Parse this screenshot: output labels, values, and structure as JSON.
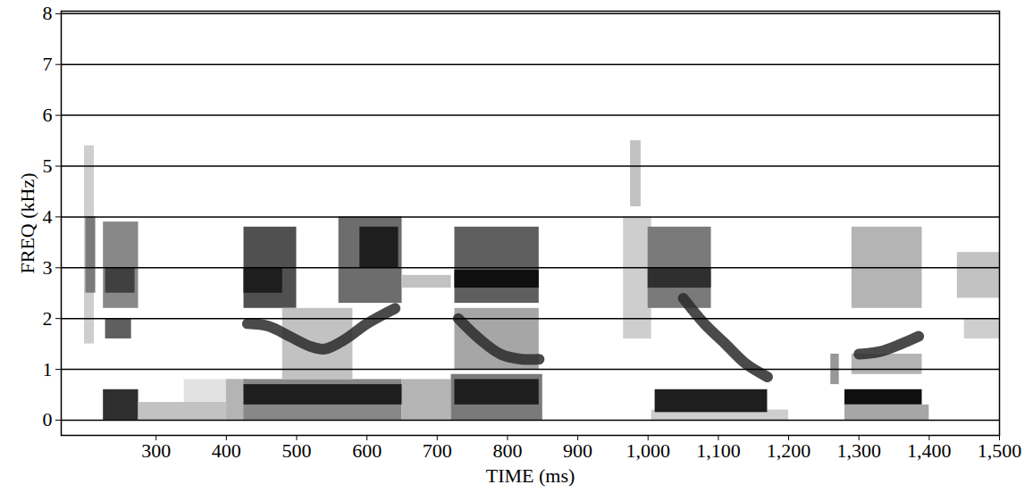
{
  "chart_data": {
    "type": "spectrogram",
    "x_label": "TIME (ms)",
    "y_label": "FREQ (kHz)",
    "xlim": [
      165,
      1500
    ],
    "ylim": [
      -0.3,
      8.05
    ],
    "xticks": [
      300,
      400,
      500,
      600,
      700,
      800,
      900,
      1000,
      1100,
      1200,
      1300,
      1400,
      1500
    ],
    "yticks": [
      0,
      1,
      2,
      3,
      4,
      5,
      6,
      7,
      8
    ],
    "grid": true,
    "cells": [
      {
        "time": [
          198,
          212
        ],
        "freq": [
          1.5,
          5.4
        ],
        "level": 0.3
      },
      {
        "time": [
          200,
          214
        ],
        "freq": [
          2.5,
          4.0
        ],
        "level": 0.6
      },
      {
        "time": [
          225,
          275
        ],
        "freq": [
          2.2,
          3.9
        ],
        "level": 0.55
      },
      {
        "time": [
          228,
          270
        ],
        "freq": [
          2.5,
          3.0
        ],
        "level": 0.8
      },
      {
        "time": [
          228,
          265
        ],
        "freq": [
          1.6,
          2.0
        ],
        "level": 0.7
      },
      {
        "time": [
          225,
          275
        ],
        "freq": [
          0.0,
          0.6
        ],
        "level": 0.85
      },
      {
        "time": [
          275,
          400
        ],
        "freq": [
          0.0,
          0.35
        ],
        "level": 0.35
      },
      {
        "time": [
          340,
          420
        ],
        "freq": [
          0.35,
          0.8
        ],
        "level": 0.2
      },
      {
        "time": [
          400,
          430
        ],
        "freq": [
          0.0,
          0.8
        ],
        "level": 0.4
      },
      {
        "time": [
          425,
          650
        ],
        "freq": [
          0.0,
          0.8
        ],
        "level": 0.55
      },
      {
        "time": [
          425,
          680
        ],
        "freq": [
          0.3,
          0.7
        ],
        "level": 0.9
      },
      {
        "time": [
          425,
          500
        ],
        "freq": [
          2.2,
          3.8
        ],
        "level": 0.75
      },
      {
        "time": [
          425,
          480
        ],
        "freq": [
          2.5,
          3.0
        ],
        "level": 0.9
      },
      {
        "time": [
          560,
          650
        ],
        "freq": [
          2.3,
          4.0
        ],
        "level": 0.65
      },
      {
        "time": [
          590,
          645
        ],
        "freq": [
          3.0,
          3.8
        ],
        "level": 0.9
      },
      {
        "time": [
          480,
          580
        ],
        "freq": [
          0.8,
          2.2
        ],
        "level": 0.35
      },
      {
        "time": [
          650,
          720
        ],
        "freq": [
          0.0,
          0.8
        ],
        "level": 0.4
      },
      {
        "time": [
          650,
          720
        ],
        "freq": [
          2.6,
          2.85
        ],
        "level": 0.35
      },
      {
        "time": [
          720,
          850
        ],
        "freq": [
          0.0,
          0.9
        ],
        "level": 0.6
      },
      {
        "time": [
          725,
          845
        ],
        "freq": [
          0.3,
          0.8
        ],
        "level": 0.9
      },
      {
        "time": [
          725,
          845
        ],
        "freq": [
          2.3,
          3.8
        ],
        "level": 0.7
      },
      {
        "time": [
          725,
          845
        ],
        "freq": [
          2.6,
          2.95
        ],
        "level": 0.95
      },
      {
        "time": [
          725,
          845
        ],
        "freq": [
          1.0,
          2.2
        ],
        "level": 0.45
      },
      {
        "time": [
          965,
          1005
        ],
        "freq": [
          1.6,
          4.0
        ],
        "level": 0.3
      },
      {
        "time": [
          975,
          990
        ],
        "freq": [
          4.2,
          5.5
        ],
        "level": 0.35
      },
      {
        "time": [
          1005,
          1200
        ],
        "freq": [
          0.0,
          0.2
        ],
        "level": 0.3
      },
      {
        "time": [
          1010,
          1170
        ],
        "freq": [
          0.15,
          0.6
        ],
        "level": 0.9
      },
      {
        "time": [
          1000,
          1090
        ],
        "freq": [
          2.2,
          3.8
        ],
        "level": 0.6
      },
      {
        "time": [
          1000,
          1090
        ],
        "freq": [
          2.6,
          3.0
        ],
        "level": 0.85
      },
      {
        "time": [
          1260,
          1272
        ],
        "freq": [
          0.7,
          1.3
        ],
        "level": 0.5
      },
      {
        "time": [
          1280,
          1390
        ],
        "freq": [
          0.3,
          0.6
        ],
        "level": 0.95
      },
      {
        "time": [
          1280,
          1400
        ],
        "freq": [
          0.0,
          0.3
        ],
        "level": 0.45
      },
      {
        "time": [
          1290,
          1390
        ],
        "freq": [
          2.2,
          3.8
        ],
        "level": 0.4
      },
      {
        "time": [
          1290,
          1390
        ],
        "freq": [
          0.9,
          1.3
        ],
        "level": 0.4
      },
      {
        "time": [
          1440,
          1500
        ],
        "freq": [
          2.4,
          3.3
        ],
        "level": 0.35
      },
      {
        "time": [
          1450,
          1500
        ],
        "freq": [
          1.6,
          2.0
        ],
        "level": 0.3
      }
    ],
    "formant_tracks": [
      {
        "color": "#2a2a2a",
        "x": [
          430,
          460,
          490,
          520,
          540,
          570,
          600,
          640
        ],
        "y": [
          1.9,
          1.85,
          1.65,
          1.45,
          1.4,
          1.6,
          1.9,
          2.2
        ]
      },
      {
        "color": "#2a2a2a",
        "x": [
          730,
          760,
          790,
          820,
          845
        ],
        "y": [
          2.0,
          1.6,
          1.3,
          1.2,
          1.2
        ]
      },
      {
        "color": "#2a2a2a",
        "x": [
          1050,
          1080,
          1110,
          1140,
          1170
        ],
        "y": [
          2.4,
          1.9,
          1.5,
          1.1,
          0.85
        ]
      },
      {
        "color": "#2a2a2a",
        "x": [
          1300,
          1330,
          1360,
          1385
        ],
        "y": [
          1.3,
          1.35,
          1.5,
          1.65
        ]
      }
    ]
  }
}
